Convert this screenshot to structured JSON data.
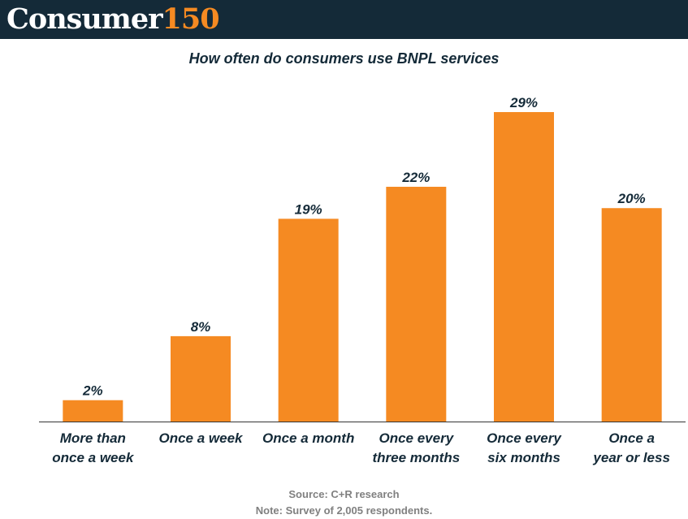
{
  "header": {
    "brand_word": "Consumer",
    "brand_number": "150"
  },
  "chart_data": {
    "type": "bar",
    "title": "How often do consumers use BNPL services",
    "categories": [
      [
        "More than",
        "once a week"
      ],
      [
        "Once a week"
      ],
      [
        "Once a month"
      ],
      [
        "Once every",
        "three months"
      ],
      [
        "Once every",
        "six months"
      ],
      [
        "Once a",
        "year or less"
      ]
    ],
    "values": [
      2,
      8,
      19,
      22,
      29,
      20
    ],
    "value_labels": [
      "2%",
      "8%",
      "19%",
      "22%",
      "29%",
      "20%"
    ],
    "unit": "%",
    "ylim": [
      0,
      29
    ],
    "grid": false,
    "bar_color": "#f58a22"
  },
  "footer": {
    "source": "Source: C+R research",
    "note": "Note: Survey of 2,005 respondents."
  },
  "colors": {
    "header_bg": "#142a38",
    "text_dark": "#142a38",
    "accent": "#f58a22",
    "footer_text": "#808080"
  }
}
